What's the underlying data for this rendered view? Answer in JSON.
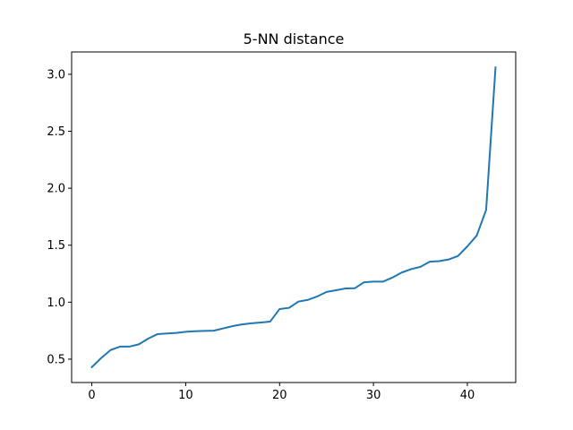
{
  "chart_data": {
    "type": "line",
    "title": "5-NN distance",
    "xlabel": "",
    "ylabel": "",
    "xlim": [
      -2.15,
      45.15
    ],
    "ylim": [
      0.295,
      3.196
    ],
    "xticks": [
      0,
      10,
      20,
      30,
      40
    ],
    "xtick_labels": [
      "0",
      "10",
      "20",
      "30",
      "40"
    ],
    "yticks": [
      0.5,
      1.0,
      1.5,
      2.0,
      2.5,
      3.0
    ],
    "ytick_labels": [
      "0.5",
      "1.0",
      "1.5",
      "2.0",
      "2.5",
      "3.0"
    ],
    "grid": false,
    "legend": "none",
    "color": "#1f77b4",
    "series": [
      {
        "x": [
          0,
          1,
          2,
          3,
          4,
          5,
          6,
          7,
          8,
          9,
          10,
          11,
          12,
          13,
          14,
          15,
          16,
          17,
          18,
          19,
          20,
          21,
          22,
          23,
          24,
          25,
          26,
          27,
          28,
          29,
          30,
          31,
          32,
          33,
          34,
          35,
          36,
          37,
          38,
          39,
          40,
          41,
          42,
          43
        ],
        "values": [
          0.43,
          0.51,
          0.58,
          0.61,
          0.61,
          0.63,
          0.68,
          0.72,
          0.725,
          0.73,
          0.74,
          0.745,
          0.748,
          0.75,
          0.77,
          0.79,
          0.805,
          0.815,
          0.822,
          0.83,
          0.94,
          0.95,
          1.005,
          1.02,
          1.05,
          1.09,
          1.105,
          1.12,
          1.122,
          1.175,
          1.18,
          1.18,
          1.215,
          1.26,
          1.29,
          1.31,
          1.355,
          1.36,
          1.375,
          1.405,
          1.49,
          1.585,
          1.81,
          3.06
        ]
      }
    ]
  }
}
